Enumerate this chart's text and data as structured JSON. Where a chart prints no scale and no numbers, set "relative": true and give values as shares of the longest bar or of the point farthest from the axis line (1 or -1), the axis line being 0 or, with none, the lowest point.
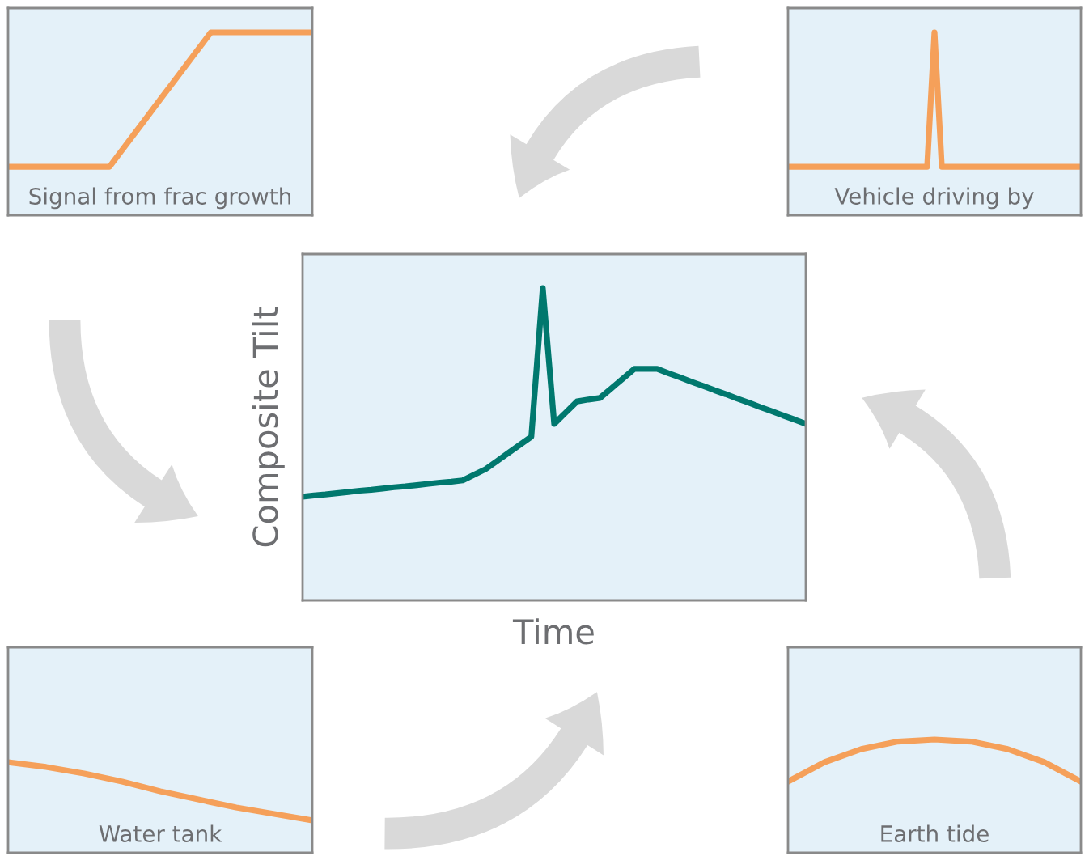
{
  "chart_data": [
    {
      "type": "line",
      "relative": true,
      "xlabel": "Signal from frac growth",
      "categories": [
        null,
        null,
        null,
        null,
        null,
        null,
        null,
        null,
        null,
        null,
        null,
        null,
        null,
        null,
        null,
        null,
        null,
        null,
        null
      ],
      "series": [
        {
          "color": "#f5a05a",
          "values": [
            0.265,
            0.265,
            0.265,
            0.265,
            0.265,
            0.265,
            0.265,
            0.388,
            0.51,
            0.633,
            0.755,
            0.878,
            1,
            1,
            1,
            1,
            1,
            1,
            1
          ]
        }
      ]
    },
    {
      "type": "line",
      "relative": true,
      "xlabel": "Vehicle driving by",
      "categories": [
        null,
        null,
        null,
        null,
        null,
        null,
        null,
        null,
        null,
        null,
        null,
        null,
        null,
        null,
        null,
        null,
        null,
        null,
        null,
        null,
        null,
        null,
        null,
        null,
        null,
        null,
        null,
        null,
        null,
        null,
        null,
        null,
        null,
        null,
        null,
        null,
        null,
        null,
        null,
        null,
        null
      ],
      "series": [
        {
          "color": "#f5a05a",
          "values": [
            0.265,
            0.265,
            0.265,
            0.265,
            0.265,
            0.265,
            0.265,
            0.265,
            0.265,
            0.265,
            0.265,
            0.265,
            0.265,
            0.265,
            0.265,
            0.265,
            0.265,
            0.265,
            0.265,
            0.265,
            1,
            0.265,
            0.265,
            0.265,
            0.265,
            0.265,
            0.265,
            0.265,
            0.265,
            0.265,
            0.265,
            0.265,
            0.265,
            0.265,
            0.265,
            0.265,
            0.265,
            0.265,
            0.265,
            0.265,
            0.265
          ]
        }
      ]
    },
    {
      "type": "line",
      "relative": true,
      "xlabel": "Time",
      "ylabel": "Composite Tilt",
      "categories": [
        null,
        null,
        null,
        null,
        null,
        null,
        null,
        null,
        null,
        null,
        null,
        null,
        null,
        null,
        null,
        null,
        null,
        null,
        null,
        null,
        null,
        null,
        null,
        null,
        null,
        null,
        null,
        null,
        null,
        null,
        null,
        null,
        null,
        null,
        null,
        null,
        null,
        null,
        null,
        null,
        null,
        null,
        null,
        null,
        null
      ],
      "series": [
        {
          "color": "#00786e",
          "values": [
            0.332,
            0.336,
            0.339,
            0.343,
            0.347,
            0.351,
            0.354,
            0.358,
            0.362,
            0.365,
            0.369,
            0.373,
            0.377,
            0.38,
            0.384,
            0.402,
            0.42,
            0.446,
            0.472,
            0.498,
            0.524,
            1,
            0.565,
            0.601,
            0.637,
            0.643,
            0.648,
            0.679,
            0.71,
            0.741,
            0.741,
            0.741,
            0.727,
            0.714,
            0.7,
            0.687,
            0.673,
            0.66,
            0.646,
            0.633,
            0.619,
            0.606,
            0.592,
            0.579,
            0.565
          ]
        }
      ]
    },
    {
      "type": "line",
      "relative": true,
      "xlabel": "Water tank",
      "categories": [
        null,
        null,
        null,
        null,
        null,
        null,
        null,
        null,
        null
      ],
      "series": [
        {
          "color": "#f5a05a",
          "values": [
            1,
            0.947,
            0.875,
            0.786,
            0.679,
            0.589,
            0.5,
            0.428,
            0.357
          ]
        }
      ]
    },
    {
      "type": "line",
      "relative": true,
      "xlabel": "Earth tide",
      "categories": [
        null,
        null,
        null,
        null,
        null,
        null,
        null,
        null,
        null
      ],
      "series": [
        {
          "color": "#f5a05a",
          "values": [
            0.629,
            0.8,
            0.915,
            0.982,
            1,
            0.982,
            0.915,
            0.8,
            0.629
          ]
        }
      ]
    }
  ]
}
